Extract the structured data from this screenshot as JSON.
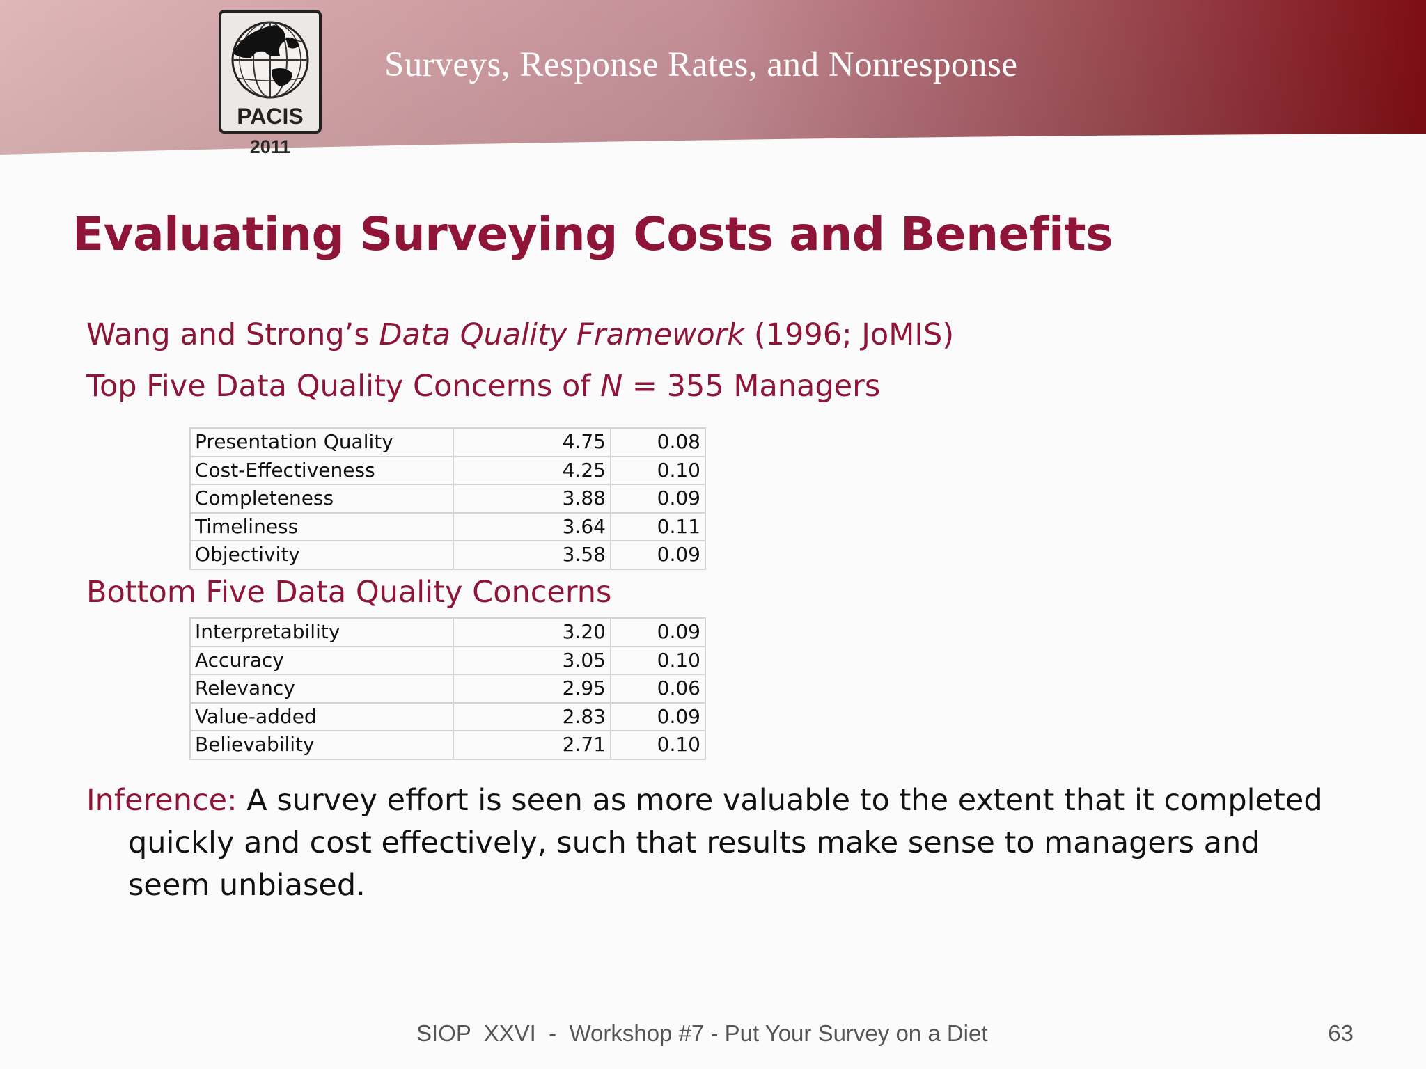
{
  "header": {
    "title": "Surveys, Response Rates, and Nonresponse",
    "logo_text": "PACIS",
    "logo_year": "2011"
  },
  "slide": {
    "title": "Evaluating Surveying Costs and Benefits",
    "framework": {
      "before": "Wang and Strong’s ",
      "italic": "Data Quality Framework",
      "after": " (1996; JoMIS)"
    },
    "top_heading": {
      "before": "Top Five Data Quality Concerns of ",
      "italic": "N",
      "after": " = 355 Managers"
    },
    "top_rows": [
      {
        "name": "Presentation Quality",
        "mean": "4.75",
        "sd": "0.08"
      },
      {
        "name": "Cost-Effectiveness",
        "mean": "4.25",
        "sd": "0.10"
      },
      {
        "name": "Completeness",
        "mean": "3.88",
        "sd": "0.09"
      },
      {
        "name": "Timeliness",
        "mean": "3.64",
        "sd": "0.11"
      },
      {
        "name": "Objectivity",
        "mean": "3.58",
        "sd": "0.09"
      }
    ],
    "bottom_heading": "Bottom Five Data Quality Concerns",
    "bottom_rows": [
      {
        "name": "Interpretability",
        "mean": "3.20",
        "sd": "0.09"
      },
      {
        "name": "Accuracy",
        "mean": "3.05",
        "sd": "0.10"
      },
      {
        "name": "Relevancy",
        "mean": "2.95",
        "sd": "0.06"
      },
      {
        "name": "Value-added",
        "mean": "2.83",
        "sd": "0.09"
      },
      {
        "name": "Believability",
        "mean": "2.71",
        "sd": "0.10"
      }
    ],
    "inference": {
      "label": "Inference:",
      "text": " A survey effort is seen as more valuable to the extent that it completed quickly and cost effectively, such that results make sense to managers and seem unbiased."
    }
  },
  "footer": {
    "text": "SIOP  XXVI  -  Workshop #7 - Put Your Survey on a Diet",
    "page_number": "63"
  },
  "colors": {
    "accent": "#8e1438",
    "header_gradient_start": "#dfb7b7",
    "header_gradient_end": "#7e0d14",
    "table_border": "#d3d3d3"
  }
}
